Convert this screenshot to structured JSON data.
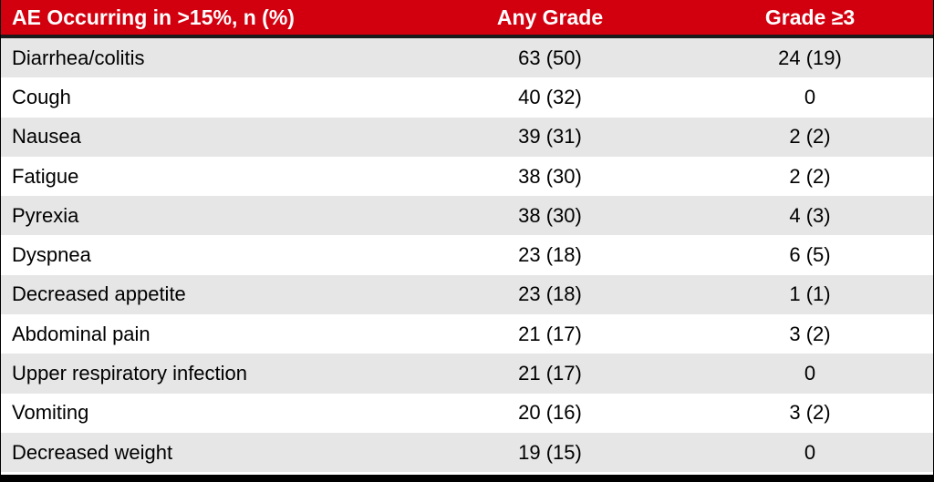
{
  "table": {
    "headers": {
      "event": "AE Occurring in >15%, n (%)",
      "any_grade": "Any Grade",
      "grade3": "Grade ≥3"
    },
    "rows": [
      {
        "event": "Diarrhea/colitis",
        "any_grade": "63 (50)",
        "grade3": "24 (19)"
      },
      {
        "event": "Cough",
        "any_grade": "40 (32)",
        "grade3": "0"
      },
      {
        "event": "Nausea",
        "any_grade": "39 (31)",
        "grade3": "2 (2)"
      },
      {
        "event": "Fatigue",
        "any_grade": "38 (30)",
        "grade3": "2 (2)"
      },
      {
        "event": "Pyrexia",
        "any_grade": "38 (30)",
        "grade3": "4 (3)"
      },
      {
        "event": "Dyspnea",
        "any_grade": "23 (18)",
        "grade3": "6 (5)"
      },
      {
        "event": "Decreased appetite",
        "any_grade": "23 (18)",
        "grade3": "1 (1)"
      },
      {
        "event": "Abdominal pain",
        "any_grade": "21 (17)",
        "grade3": "3 (2)"
      },
      {
        "event": "Upper respiratory infection",
        "any_grade": "21 (17)",
        "grade3": "0"
      },
      {
        "event": "Vomiting",
        "any_grade": "20 (16)",
        "grade3": "3 (2)"
      },
      {
        "event": "Decreased weight",
        "any_grade": "19 (15)",
        "grade3": "0"
      }
    ]
  },
  "colors": {
    "header_bg": "#d2000f",
    "row_shade": "#e6e6e6",
    "row_plain": "#ffffff"
  }
}
